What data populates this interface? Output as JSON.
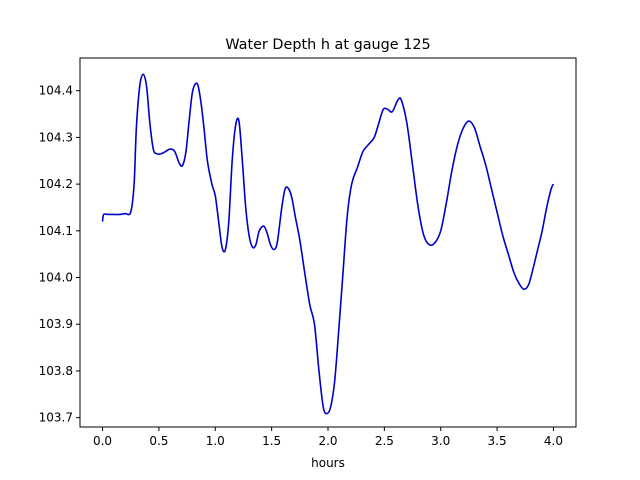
{
  "chart_data": {
    "type": "line",
    "title": "Water Depth h at gauge 125",
    "xlabel": "hours",
    "ylabel": "",
    "xlim": [
      -0.2,
      4.2
    ],
    "ylim": [
      103.68,
      104.47
    ],
    "xticks": [
      "0.0",
      "0.5",
      "1.0",
      "1.5",
      "2.0",
      "2.5",
      "3.0",
      "3.5",
      "4.0"
    ],
    "yticks": [
      "103.7",
      "103.8",
      "103.9",
      "104.0",
      "104.1",
      "104.2",
      "104.3",
      "104.4"
    ],
    "grid": false,
    "line_color": "#0000cc",
    "series": [
      {
        "x": [
          0.0,
          0.01,
          0.05,
          0.1,
          0.15,
          0.2,
          0.25,
          0.28,
          0.3,
          0.33,
          0.36,
          0.39,
          0.42,
          0.45,
          0.48,
          0.52,
          0.56,
          0.6,
          0.64,
          0.68,
          0.71,
          0.74,
          0.77,
          0.8,
          0.84,
          0.87,
          0.9,
          0.93,
          0.97,
          1.0,
          1.03,
          1.06,
          1.09,
          1.12,
          1.15,
          1.18,
          1.21,
          1.24,
          1.27,
          1.3,
          1.33,
          1.36,
          1.39,
          1.43,
          1.46,
          1.49,
          1.52,
          1.55,
          1.59,
          1.62,
          1.65,
          1.68,
          1.71,
          1.75,
          1.8,
          1.84,
          1.88,
          1.92,
          1.96,
          2.0,
          2.03,
          2.06,
          2.09,
          2.13,
          2.17,
          2.21,
          2.26,
          2.31,
          2.36,
          2.41,
          2.45,
          2.49,
          2.53,
          2.57,
          2.62,
          2.65,
          2.7,
          2.75,
          2.8,
          2.85,
          2.9,
          2.95,
          3.0,
          3.05,
          3.1,
          3.15,
          3.2,
          3.25,
          3.3,
          3.35,
          3.4,
          3.45,
          3.5,
          3.55,
          3.6,
          3.65,
          3.7,
          3.74,
          3.78,
          3.82,
          3.86,
          3.9,
          3.94,
          3.98,
          4.0
        ],
        "values": [
          104.12,
          104.135,
          104.135,
          104.135,
          104.135,
          104.137,
          104.14,
          104.2,
          104.32,
          104.41,
          104.435,
          104.41,
          104.33,
          104.275,
          104.265,
          104.265,
          104.27,
          104.275,
          104.27,
          104.245,
          104.24,
          104.27,
          104.34,
          104.4,
          104.415,
          104.38,
          104.32,
          104.25,
          104.2,
          104.175,
          104.12,
          104.065,
          104.06,
          104.12,
          104.25,
          104.325,
          104.335,
          104.25,
          104.15,
          104.09,
          104.065,
          104.07,
          104.1,
          104.11,
          104.095,
          104.07,
          104.06,
          104.075,
          104.15,
          104.19,
          104.19,
          104.17,
          104.13,
          104.08,
          104.0,
          103.94,
          103.9,
          103.8,
          103.72,
          103.71,
          103.73,
          103.78,
          103.87,
          104.0,
          104.13,
          104.2,
          104.235,
          104.27,
          104.285,
          104.3,
          104.33,
          104.36,
          104.36,
          104.355,
          104.38,
          104.38,
          104.33,
          104.24,
          104.15,
          104.09,
          104.07,
          104.075,
          104.1,
          104.16,
          104.23,
          104.285,
          104.32,
          104.335,
          104.32,
          104.28,
          104.24,
          104.19,
          104.14,
          104.09,
          104.05,
          104.01,
          103.985,
          103.975,
          103.985,
          104.02,
          104.06,
          104.1,
          104.15,
          104.19,
          104.2
        ]
      }
    ]
  }
}
